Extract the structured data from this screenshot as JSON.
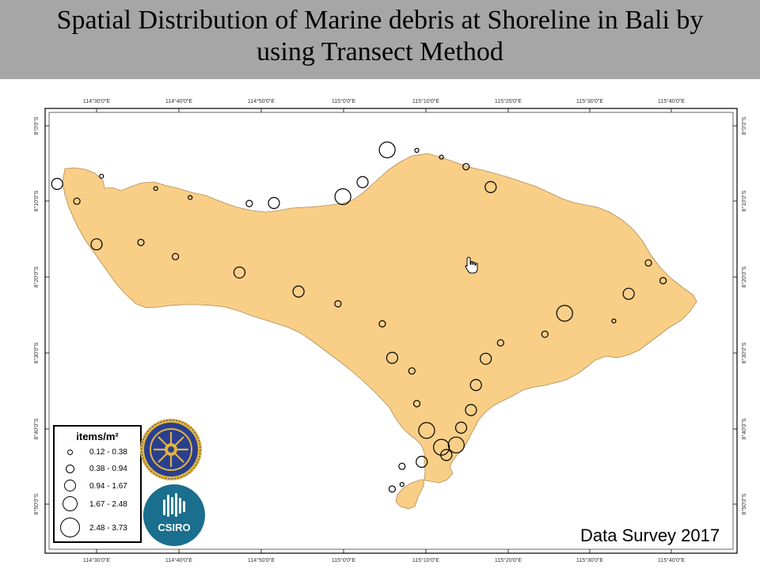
{
  "header": {
    "title_line1": "Spatial Distribution of Marine debris at Shoreline in Bali by",
    "title_line2": "using Transect Method"
  },
  "map": {
    "lon_ticks": [
      "114°30'0\"E",
      "114°40'0\"E",
      "114°50'0\"E",
      "115°0'0\"E",
      "115°10'0\"E",
      "115°20'0\"E",
      "115°30'0\"E",
      "115°40'0\"E"
    ],
    "lat_ticks": [
      "8°0'0\"S",
      "8°10'0\"S",
      "8°20'0\"S",
      "8°30'0\"S",
      "8°40'0\"S",
      "8°50'0\"S"
    ],
    "land_color": "#f9cf87",
    "coast_color": "#b08a55",
    "sample_sites": [
      {
        "lon": 114.51,
        "lat": -8.111,
        "class": 1
      },
      {
        "lon": 114.62,
        "lat": -8.138,
        "class": 1
      },
      {
        "lon": 114.69,
        "lat": -8.158,
        "class": 1
      },
      {
        "lon": 114.81,
        "lat": -8.171,
        "class": 2
      },
      {
        "lon": 114.86,
        "lat": -8.17,
        "class": 3
      },
      {
        "lon": 115.0,
        "lat": -8.156,
        "class": 4
      },
      {
        "lon": 115.04,
        "lat": -8.124,
        "class": 3
      },
      {
        "lon": 115.09,
        "lat": -8.053,
        "class": 4
      },
      {
        "lon": 115.15,
        "lat": -8.054,
        "class": 1
      },
      {
        "lon": 115.2,
        "lat": -8.069,
        "class": 1
      },
      {
        "lon": 115.25,
        "lat": -8.09,
        "class": 2
      },
      {
        "lon": 115.3,
        "lat": -8.135,
        "class": 3
      },
      {
        "lon": 115.62,
        "lat": -8.302,
        "class": 2
      },
      {
        "lon": 115.65,
        "lat": -8.341,
        "class": 2
      },
      {
        "lon": 115.58,
        "lat": -8.37,
        "class": 3
      },
      {
        "lon": 115.55,
        "lat": -8.43,
        "class": 1
      },
      {
        "lon": 115.45,
        "lat": -8.413,
        "class": 4
      },
      {
        "lon": 115.41,
        "lat": -8.459,
        "class": 2
      },
      {
        "lon": 115.32,
        "lat": -8.478,
        "class": 2
      },
      {
        "lon": 115.29,
        "lat": -8.513,
        "class": 3
      },
      {
        "lon": 115.27,
        "lat": -8.571,
        "class": 3
      },
      {
        "lon": 115.26,
        "lat": -8.626,
        "class": 3
      },
      {
        "lon": 115.17,
        "lat": -8.671,
        "class": 4
      },
      {
        "lon": 115.15,
        "lat": -8.612,
        "class": 2
      },
      {
        "lon": 115.14,
        "lat": -8.54,
        "class": 2
      },
      {
        "lon": 115.1,
        "lat": -8.511,
        "class": 3
      },
      {
        "lon": 115.08,
        "lat": -8.436,
        "class": 2
      },
      {
        "lon": 114.99,
        "lat": -8.392,
        "class": 2
      },
      {
        "lon": 114.91,
        "lat": -8.365,
        "class": 3
      },
      {
        "lon": 114.79,
        "lat": -8.323,
        "class": 3
      },
      {
        "lon": 114.66,
        "lat": -8.288,
        "class": 2
      },
      {
        "lon": 114.59,
        "lat": -8.257,
        "class": 2
      },
      {
        "lon": 114.5,
        "lat": -8.261,
        "class": 3
      },
      {
        "lon": 114.46,
        "lat": -8.166,
        "class": 2
      },
      {
        "lon": 114.42,
        "lat": -8.128,
        "class": 3
      },
      {
        "lon": 115.12,
        "lat": -8.75,
        "class": 2
      },
      {
        "lon": 115.16,
        "lat": -8.74,
        "class": 3
      },
      {
        "lon": 115.2,
        "lat": -8.708,
        "class": 4
      },
      {
        "lon": 115.23,
        "lat": -8.703,
        "class": 4
      },
      {
        "lon": 115.21,
        "lat": -8.725,
        "class": 3
      },
      {
        "lon": 115.12,
        "lat": -8.79,
        "class": 1
      },
      {
        "lon": 115.1,
        "lat": -8.8,
        "class": 2
      },
      {
        "lon": 115.24,
        "lat": -8.665,
        "class": 3
      }
    ]
  },
  "legend": {
    "title": "items/m²",
    "classes": [
      {
        "label": "0.12 - 0.38"
      },
      {
        "label": "0.38 - 0.94"
      },
      {
        "label": "0.94 - 1.67"
      },
      {
        "label": "1.67 - 2.48"
      },
      {
        "label": "2.48 - 3.73"
      }
    ]
  },
  "logos": {
    "university_seal_icon": "university-seal",
    "csiro_logo_icon": "csiro-logo",
    "csiro_color": "#1a6e8e",
    "seal_color": "#2a3f8f",
    "seal_gold": "#e2b43c"
  },
  "footer": {
    "survey_label": "Data Survey 2017"
  }
}
